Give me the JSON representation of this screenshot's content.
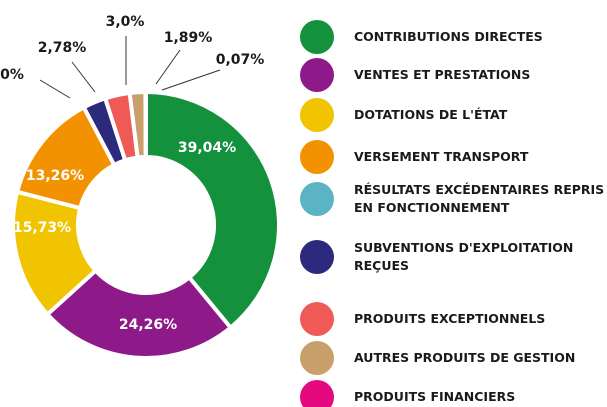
{
  "chart_data": {
    "type": "donut",
    "categories": [
      "CONTRIBUTIONS DIRECTES",
      "VENTES ET PRESTATIONS",
      "DOTATIONS DE L'ÉTAT",
      "VERSEMENT TRANSPORT",
      "RÉSULTATS EXCÉDENTAIRES REPRIS EN FONCTIONNEMENT",
      "SUBVENTIONS D'EXPLOITATION REÇUES",
      "PRODUITS EXCEPTIONNELS",
      "AUTRES PRODUITS DE GESTION",
      "PRODUITS FINANCIERS"
    ],
    "values": [
      39.04,
      24.26,
      15.73,
      13.26,
      0,
      2.78,
      3.0,
      1.89,
      0.07
    ],
    "value_labels": [
      "39,04%",
      "24,26%",
      "15,73%",
      "13,26%",
      "0%",
      "2,78%",
      "3,0%",
      "1,89%",
      "0,07%"
    ],
    "colors": [
      "#13913c",
      "#8e1a8a",
      "#f0c400",
      "#f39200",
      "#5ab4c4",
      "#2b2a7c",
      "#ef5a57",
      "#c9a06b",
      "#e5097f"
    ]
  }
}
